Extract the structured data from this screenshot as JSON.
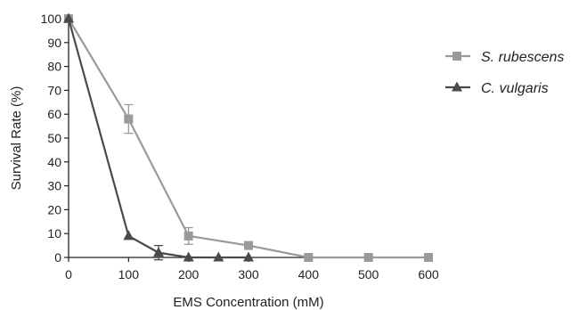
{
  "chart_data": {
    "type": "line",
    "title": "",
    "xlabel": "EMS Concentration (mM)",
    "ylabel": "Survival  Rate (%)",
    "xlim": [
      0,
      600
    ],
    "ylim": [
      0,
      100
    ],
    "x_ticks": [
      0,
      100,
      200,
      300,
      400,
      500,
      600
    ],
    "y_ticks": [
      0,
      10,
      20,
      30,
      40,
      50,
      60,
      70,
      80,
      90,
      100
    ],
    "grid": false,
    "legend_position": "right",
    "series": [
      {
        "name": "S. rubescens",
        "marker": "square",
        "color": "#9a9a9a",
        "x": [
          0,
          100,
          200,
          300,
          400,
          500,
          600
        ],
        "y": [
          100,
          58,
          9,
          5,
          0,
          0,
          0
        ],
        "error": [
          0,
          6,
          3.5,
          0,
          0,
          0,
          0
        ]
      },
      {
        "name": "C. vulgaris",
        "marker": "triangle",
        "color": "#4a4a4a",
        "x": [
          0,
          100,
          150,
          200,
          250,
          300
        ],
        "y": [
          100,
          9,
          2,
          0,
          0,
          0
        ],
        "error": [
          0,
          0,
          3,
          0,
          0,
          0
        ]
      }
    ]
  }
}
